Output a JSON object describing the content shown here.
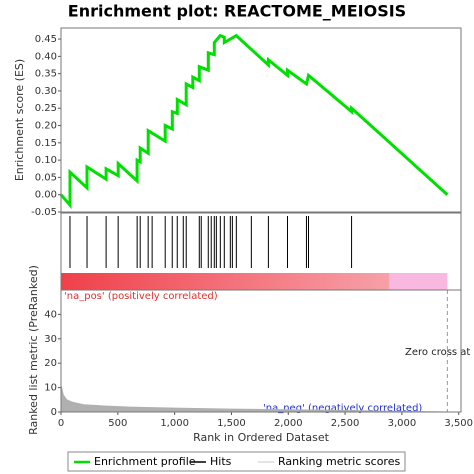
{
  "chart_data": [
    {
      "type": "line",
      "title": "Enrichment plot: REACTOME_MEIOSIS",
      "y_label": "Enrichment score (ES)",
      "color": "#00e000",
      "xlim": [
        0,
        3520
      ],
      "ylim": [
        -0.05,
        0.482
      ],
      "yticks": [
        {
          "value": -0.05,
          "label": "-0.05"
        },
        {
          "value": 0,
          "label": "0.00"
        },
        {
          "value": 0.05,
          "label": "0.05"
        },
        {
          "value": 0.1,
          "label": "0.10"
        },
        {
          "value": 0.15,
          "label": "0.15"
        },
        {
          "value": 0.2,
          "label": "0.20"
        },
        {
          "value": 0.25,
          "label": "0.25"
        },
        {
          "value": 0.3,
          "label": "0.30"
        },
        {
          "value": 0.35,
          "label": "0.35"
        },
        {
          "value": 0.4,
          "label": "0.40"
        },
        {
          "value": 0.45,
          "label": "0.45"
        }
      ],
      "x": [
        0,
        79,
        79,
        229,
        229,
        397,
        397,
        503,
        503,
        670,
        670,
        697,
        697,
        767,
        767,
        917,
        917,
        979,
        979,
        1023,
        1023,
        1102,
        1102,
        1160,
        1160,
        1217,
        1217,
        1296,
        1296,
        1349,
        1349,
        1402,
        1437,
        1437,
        1543,
        1825,
        1825,
        1993,
        1993,
        2160,
        2178,
        2557,
        2557,
        3400
      ],
      "values": [
        0,
        -0.03,
        0.065,
        0.02,
        0.08,
        0.045,
        0.075,
        0.055,
        0.09,
        0.04,
        0.1,
        0.095,
        0.135,
        0.12,
        0.185,
        0.155,
        0.2,
        0.19,
        0.24,
        0.235,
        0.275,
        0.26,
        0.32,
        0.31,
        0.34,
        0.33,
        0.37,
        0.36,
        0.41,
        0.405,
        0.44,
        0.46,
        0.455,
        0.44,
        0.46,
        0.375,
        0.39,
        0.345,
        0.36,
        0.32,
        0.345,
        0.24,
        0.25,
        0
      ]
    },
    {
      "type": "hits",
      "xlim": [
        0,
        3520
      ],
      "color": "#000000",
      "x": [
        79,
        229,
        397,
        503,
        670,
        697,
        767,
        802,
        917,
        979,
        1023,
        1076,
        1102,
        1217,
        1234,
        1296,
        1322,
        1349,
        1367,
        1402,
        1437,
        1490,
        1508,
        1543,
        1675,
        1825,
        1993,
        2160,
        2178,
        2557
      ],
      "pos_neg_split": 2890,
      "zero_cross": 3400
    },
    {
      "type": "area",
      "y_label": "Ranked list metric (PreRanked)",
      "x_label": "Rank in Ordered Dataset",
      "color": "#b0b0b0",
      "xlim": [
        0,
        3520
      ],
      "ylim": [
        0,
        50
      ],
      "yticks": [
        0,
        10,
        20,
        30,
        40
      ],
      "xticks": [
        0,
        500,
        {
          "value": 1000,
          "label": "1,000"
        },
        {
          "value": 1500,
          "label": "1,500"
        },
        {
          "value": 2000,
          "label": "2,000"
        },
        {
          "value": 2500,
          "label": "2,500"
        },
        {
          "value": 3000,
          "label": "3,000"
        },
        {
          "value": 3500,
          "label": "3,500"
        }
      ],
      "x": [
        0,
        20,
        50,
        100,
        200,
        400,
        600,
        1000,
        1500,
        2000,
        2500,
        2900,
        3400
      ],
      "values": [
        11,
        7,
        5,
        4,
        3,
        2.4,
        2,
        1.6,
        1.2,
        0.9,
        0.6,
        0.3,
        0
      ],
      "pos_label": "'na_pos' (positively correlated)",
      "neg_label": "'na_neg' (negatively correlated)",
      "zero_label": "Zero cross at",
      "legend": [
        "Enrichment profile",
        "Hits",
        "Ranking metric scores"
      ]
    }
  ]
}
